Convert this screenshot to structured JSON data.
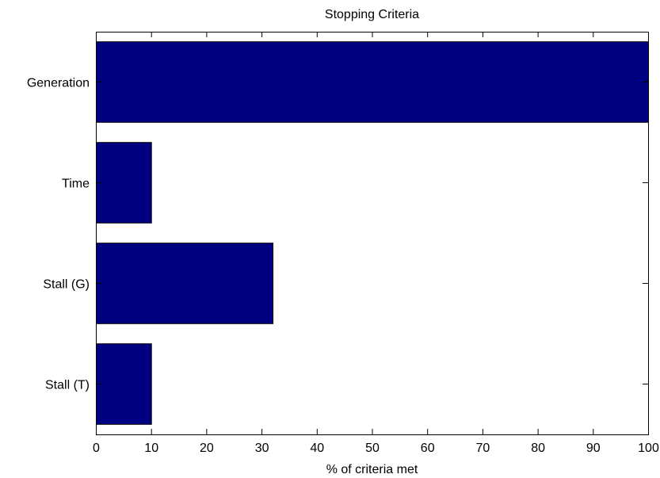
{
  "chart_data": {
    "type": "bar",
    "orientation": "horizontal",
    "title": "Stopping Criteria",
    "xlabel": "% of criteria met",
    "ylabel": "",
    "categories": [
      "Generation",
      "Time",
      "Stall (G)",
      "Stall (T)"
    ],
    "values": [
      100,
      10,
      32,
      10
    ],
    "xlim": [
      0,
      100
    ],
    "xticks": [
      0,
      10,
      20,
      30,
      40,
      50,
      60,
      70,
      80,
      90,
      100
    ],
    "grid": false,
    "legend": "none",
    "bar_color": "#000080",
    "edge_color": "#000000"
  }
}
